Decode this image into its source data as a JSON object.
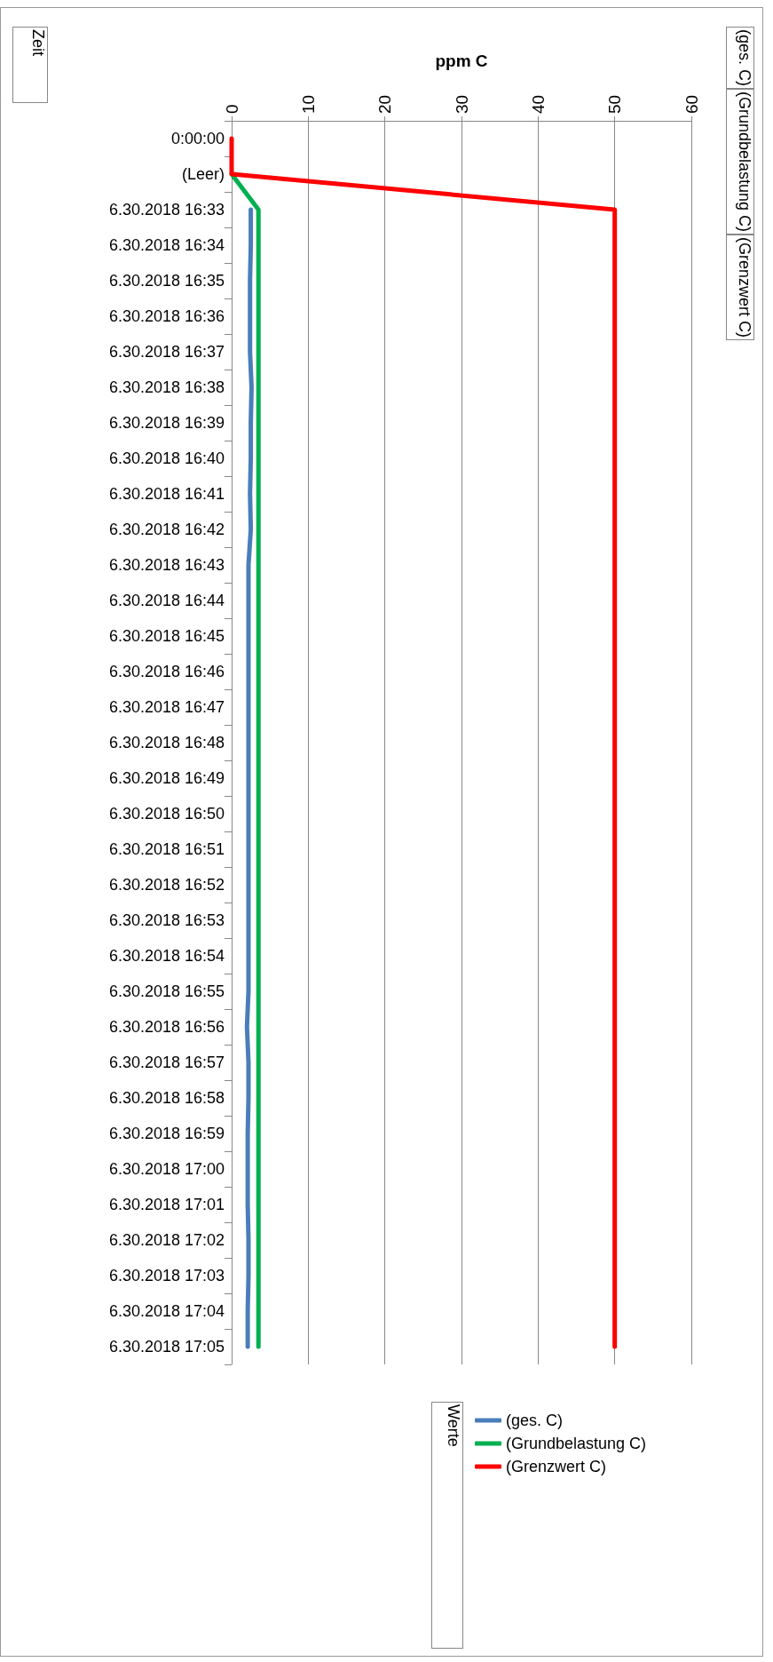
{
  "chart_data": {
    "type": "line",
    "orientation": "horizontal",
    "xlabel": "ppm C",
    "ylabel": "Zeit",
    "legend_title": "Werte",
    "annotations": [
      "(ges. C)",
      "(Grundbelastung C)",
      "(Grenzwert C)"
    ],
    "categories": [
      "0:00:00",
      "(Leer)",
      "6.30.2018 16:33",
      "6.30.2018 16:34",
      "6.30.2018 16:35",
      "6.30.2018 16:36",
      "6.30.2018 16:37",
      "6.30.2018 16:38",
      "6.30.2018 16:39",
      "6.30.2018 16:40",
      "6.30.2018 16:41",
      "6.30.2018 16:42",
      "6.30.2018 16:43",
      "6.30.2018 16:44",
      "6.30.2018 16:45",
      "6.30.2018 16:46",
      "6.30.2018 16:47",
      "6.30.2018 16:48",
      "6.30.2018 16:49",
      "6.30.2018 16:50",
      "6.30.2018 16:51",
      "6.30.2018 16:52",
      "6.30.2018 16:53",
      "6.30.2018 16:54",
      "6.30.2018 16:55",
      "6.30.2018 16:56",
      "6.30.2018 16:57",
      "6.30.2018 16:58",
      "6.30.2018 16:59",
      "6.30.2018 17:00",
      "6.30.2018 17:01",
      "6.30.2018 17:02",
      "6.30.2018 17:03",
      "6.30.2018 17:04",
      "6.30.2018 17:05"
    ],
    "series": [
      {
        "name": "(ges. C)",
        "color": "#4a7ebb",
        "values": [
          null,
          null,
          2.5,
          2.5,
          2.4,
          2.4,
          2.4,
          2.6,
          2.5,
          2.5,
          2.4,
          2.5,
          2.2,
          2.2,
          2.2,
          2.2,
          2.2,
          2.2,
          2.2,
          2.2,
          2.2,
          2.2,
          2.2,
          2.2,
          2.2,
          2.0,
          2.2,
          2.2,
          2.1,
          2.1,
          2.1,
          2.2,
          2.2,
          2.1,
          2.1
        ]
      },
      {
        "name": "(Grundbelastung C)",
        "color": "#00b050",
        "values": [
          null,
          0,
          3.5,
          3.5,
          3.5,
          3.5,
          3.5,
          3.5,
          3.5,
          3.5,
          3.5,
          3.5,
          3.5,
          3.5,
          3.5,
          3.5,
          3.5,
          3.5,
          3.5,
          3.5,
          3.5,
          3.5,
          3.5,
          3.5,
          3.5,
          3.5,
          3.5,
          3.5,
          3.5,
          3.5,
          3.5,
          3.5,
          3.5,
          3.5,
          3.5
        ]
      },
      {
        "name": "(Grenzwert C)",
        "color": "#ff0000",
        "values": [
          0,
          0,
          50,
          50,
          50,
          50,
          50,
          50,
          50,
          50,
          50,
          50,
          50,
          50,
          50,
          50,
          50,
          50,
          50,
          50,
          50,
          50,
          50,
          50,
          50,
          50,
          50,
          50,
          50,
          50,
          50,
          50,
          50,
          50,
          50
        ]
      }
    ],
    "xlim": [
      0,
      60
    ],
    "xticks": [
      0,
      10,
      20,
      30,
      40,
      50,
      60
    ],
    "grid": "x",
    "legend": "bottom",
    "marker": "none",
    "line_style": "solid"
  }
}
